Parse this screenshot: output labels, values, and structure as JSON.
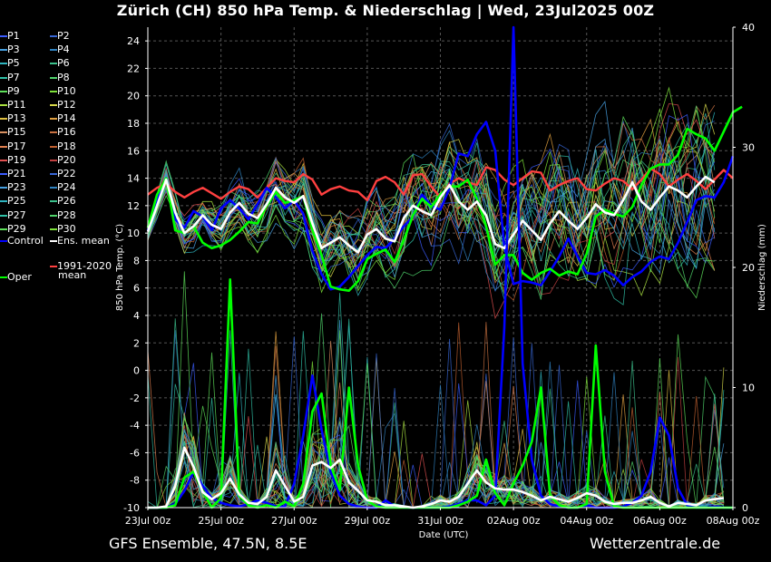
{
  "chart_data": {
    "type": "line",
    "title": "Zürich  (CH)  850 hPa Temp. & Niederschlag | Wed, 23Jul2025 00Z",
    "xlabel": "Date (UTC)",
    "ylabel": "850 hPa Temp. (°C)",
    "y2label": "Niederschlag (mm)",
    "x_ticks": [
      "23Jul 00z",
      "25Jul 00z",
      "27Jul 00z",
      "29Jul 00z",
      "31Jul 00z",
      "02Aug 00z",
      "04Aug 00z",
      "06Aug 00z",
      "08Aug 00z"
    ],
    "ylim": [
      -10,
      25
    ],
    "y_ticks": [
      -10,
      -8,
      -6,
      -4,
      -2,
      0,
      2,
      4,
      6,
      8,
      10,
      12,
      14,
      16,
      18,
      20,
      22,
      24
    ],
    "y2lim": [
      0,
      40
    ],
    "y2_ticks": [
      0,
      10,
      20,
      30,
      40
    ],
    "grid": true,
    "legend_position": "left",
    "step_hours": 6,
    "series": [
      {
        "name": "Control",
        "color": "#0000ff",
        "axis": "temp",
        "values": [
          10.2,
          12.5,
          14.0,
          11.0,
          10.4,
          11.6,
          11.2,
          10.2,
          11.8,
          12.4,
          11.8,
          11.0,
          12.1,
          13.3,
          12.6,
          11.8,
          12.4,
          11.4,
          8.7,
          7.0,
          5.9,
          6.1,
          6.8,
          7.6,
          8.4,
          9.0,
          8.9,
          9.6,
          10.5,
          11.2,
          12.8,
          12.0,
          11.7,
          13.3,
          15.8,
          15.6,
          17.2,
          18.1,
          16.0,
          9.0,
          6.3,
          6.5,
          6.4,
          6.2,
          7.2,
          8.3,
          9.6,
          8.3,
          7.1,
          7.0,
          7.3,
          6.9,
          6.2,
          6.8,
          7.2,
          7.9,
          8.3,
          8.1,
          9.3,
          10.8,
          12.4,
          12.7,
          12.6,
          13.7,
          15.6
        ]
      },
      {
        "name": "Ens. mean",
        "color": "#ffffff",
        "axis": "temp",
        "values": [
          10.1,
          12.0,
          13.9,
          11.5,
          10.0,
          10.5,
          11.3,
          10.6,
          10.3,
          11.5,
          12.2,
          11.4,
          11.1,
          12.1,
          13.3,
          12.6,
          12.2,
          12.7,
          10.7,
          8.9,
          9.3,
          9.7,
          9.1,
          8.6,
          9.9,
          10.3,
          9.6,
          9.4,
          11.1,
          12.0,
          11.6,
          11.3,
          12.6,
          13.5,
          12.3,
          11.7,
          12.3,
          11.3,
          9.2,
          8.9,
          9.9,
          10.9,
          10.2,
          9.5,
          10.7,
          11.6,
          10.9,
          10.3,
          11.1,
          12.1,
          11.5,
          11.3,
          12.4,
          13.7,
          12.3,
          11.7,
          12.6,
          13.4,
          13.1,
          12.6,
          13.4,
          14.1,
          13.7
        ]
      },
      {
        "name": "Oper",
        "color": "#00ff00",
        "axis": "temp",
        "values": [
          10.4,
          12.8,
          14.0,
          10.2,
          10.0,
          10.5,
          9.3,
          8.9,
          9.1,
          9.5,
          10.1,
          10.8,
          10.7,
          12.0,
          13.0,
          12.2,
          12.4,
          12.7,
          10.2,
          8.4,
          6.1,
          5.9,
          5.8,
          6.5,
          8.1,
          8.5,
          8.8,
          7.9,
          9.5,
          11.3,
          12.5,
          11.9,
          12.8,
          13.4,
          13.4,
          13.9,
          12.5,
          10.5,
          7.7,
          8.4,
          8.4,
          7.1,
          6.6,
          7.1,
          7.4,
          6.9,
          7.2,
          7.0,
          8.5,
          11.2,
          11.7,
          11.4,
          11.2,
          11.9,
          13.5,
          14.7,
          15.0,
          15.0,
          15.7,
          17.6,
          17.2,
          16.9,
          16.0,
          17.4,
          18.8,
          19.2
        ]
      },
      {
        "name": "1991-2020 mean",
        "color": "#ff4040",
        "axis": "temp",
        "values": [
          12.8,
          13.3,
          13.6,
          13.0,
          12.6,
          13.0,
          13.3,
          12.9,
          12.5,
          13.0,
          13.4,
          13.2,
          12.6,
          13.3,
          14.0,
          13.8,
          13.7,
          14.3,
          13.9,
          12.8,
          13.2,
          13.4,
          13.1,
          13.0,
          12.4,
          13.8,
          14.1,
          13.7,
          12.8,
          14.2,
          14.3,
          13.4,
          12.6,
          13.6,
          14.0,
          13.7,
          13.5,
          14.8,
          14.6,
          13.9,
          13.5,
          14.0,
          14.5,
          14.4,
          13.1,
          13.5,
          13.8,
          14.0,
          13.2,
          13.1,
          13.6,
          14.0,
          13.8,
          13.2,
          13.9,
          14.7,
          14.3,
          13.4,
          13.9,
          14.3,
          13.8,
          13.2,
          13.9,
          14.6,
          14.0
        ]
      },
      {
        "name": "Control",
        "color": "#0000ff",
        "axis": "precip",
        "values": [
          0,
          0,
          0,
          0.3,
          1.4,
          3.0,
          1.8,
          0.8,
          0.4,
          0.2,
          0.1,
          0.3,
          0.6,
          0.4,
          0.1,
          0.1,
          2.0,
          6.0,
          11.0,
          6.5,
          3.0,
          1.0,
          0.3,
          0.1,
          0,
          0,
          0.6,
          0.1,
          0,
          0,
          0,
          0,
          0,
          0.1,
          0.3,
          0.6,
          0.6,
          0.2,
          1.0,
          15.0,
          41.0,
          12.0,
          4.0,
          1.0,
          0.3,
          0.1,
          0,
          0,
          0.2,
          0,
          0,
          0,
          0.1,
          0.4,
          1.0,
          3.0,
          7.5,
          6.0,
          1.6,
          0.2,
          0,
          0,
          0.1,
          0,
          0
        ]
      },
      {
        "name": "Ens. mean",
        "color": "#ffffff",
        "axis": "precip",
        "values": [
          0,
          0,
          0.1,
          1.8,
          5.0,
          3.4,
          1.3,
          0.7,
          1.2,
          2.4,
          1.1,
          0.4,
          0.3,
          0.9,
          3.1,
          1.8,
          0.5,
          0.9,
          3.5,
          3.8,
          3.3,
          4.0,
          2.1,
          1.4,
          0.6,
          0.5,
          0.2,
          0.2,
          0.1,
          0,
          0.1,
          0.3,
          0.6,
          0.5,
          0.9,
          2.0,
          3.1,
          2.1,
          1.6,
          1.5,
          1.5,
          1.3,
          1.0,
          0.6,
          0.9,
          0.7,
          0.5,
          0.8,
          1.2,
          1.0,
          0.5,
          0.3,
          0.4,
          0.4,
          0.6,
          0.9,
          0.4,
          0.1,
          0.4,
          0.3,
          0.2,
          0.6,
          0.7,
          0.8
        ]
      },
      {
        "name": "Oper",
        "color": "#00ff00",
        "axis": "precip",
        "values": [
          0,
          0,
          0,
          0.2,
          2.5,
          3.0,
          1.4,
          0,
          0.8,
          19.0,
          1.0,
          0.2,
          0,
          0.2,
          0,
          0.5,
          0.1,
          2.0,
          8.0,
          9.5,
          3.5,
          1.5,
          10.0,
          3.5,
          0.6,
          0.1,
          0,
          0,
          0,
          0,
          0,
          0,
          0,
          0,
          0.2,
          0.5,
          1.0,
          4.0,
          1.2,
          0.2,
          2.0,
          3.5,
          5.5,
          10.0,
          1.0,
          0.2,
          0,
          0,
          0.3,
          13.5,
          3.0,
          0.1,
          0,
          0,
          0,
          0,
          0,
          0,
          0,
          0,
          0,
          0,
          0,
          0,
          0
        ]
      }
    ],
    "legend_entries": [
      {
        "label": "P1",
        "color": "#3b5cff"
      },
      {
        "label": "P2",
        "color": "#3766d6"
      },
      {
        "label": "P3",
        "color": "#46a0e0"
      },
      {
        "label": "P4",
        "color": "#2f82c0"
      },
      {
        "label": "P5",
        "color": "#2fb5c0"
      },
      {
        "label": "P6",
        "color": "#3cc28d"
      },
      {
        "label": "P7",
        "color": "#2fc0a6"
      },
      {
        "label": "P8",
        "color": "#4fd36b"
      },
      {
        "label": "P9",
        "color": "#5ee05a"
      },
      {
        "label": "P10",
        "color": "#7ee23a"
      },
      {
        "label": "P11",
        "color": "#a9e040"
      },
      {
        "label": "P12",
        "color": "#d6d84a"
      },
      {
        "label": "P13",
        "color": "#e0c040"
      },
      {
        "label": "P14",
        "color": "#e0a040"
      },
      {
        "label": "P15",
        "color": "#d89060"
      },
      {
        "label": "P16",
        "color": "#c87040"
      },
      {
        "label": "P17",
        "color": "#e08050"
      },
      {
        "label": "P18",
        "color": "#c06030"
      },
      {
        "label": "P19",
        "color": "#e05050"
      },
      {
        "label": "P20",
        "color": "#c04040"
      },
      {
        "label": "P21",
        "color": "#3b5cff"
      },
      {
        "label": "P22",
        "color": "#3766d6"
      },
      {
        "label": "P23",
        "color": "#46a0e0"
      },
      {
        "label": "P24",
        "color": "#2f82c0"
      },
      {
        "label": "P25",
        "color": "#2fb5c0"
      },
      {
        "label": "P26",
        "color": "#3cc28d"
      },
      {
        "label": "P27",
        "color": "#2fc0a6"
      },
      {
        "label": "P28",
        "color": "#4fd36b"
      },
      {
        "label": "P29",
        "color": "#5ee05a"
      },
      {
        "label": "P30",
        "color": "#7ee23a"
      },
      {
        "label": "Control",
        "color": "#0000ff"
      },
      {
        "label": "Ens. mean",
        "color": "#ffffff"
      },
      {
        "label": "1991-2020",
        "color": "#ff4040"
      },
      {
        "label": "mean",
        "color": ""
      },
      {
        "label": "Oper",
        "color": "#00ff00"
      }
    ],
    "ensemble_colors": [
      "#3b5cff",
      "#3766d6",
      "#46a0e0",
      "#2f82c0",
      "#2fb5c0",
      "#3cc28d",
      "#2fc0a6",
      "#4fd36b",
      "#5ee05a",
      "#7ee23a",
      "#a9e040",
      "#d6d84a",
      "#e0c040",
      "#e0a040",
      "#d89060",
      "#c87040",
      "#e08050",
      "#c06030",
      "#e05050",
      "#c04040"
    ]
  },
  "footer": {
    "left": "GFS Ensemble, 47.5N, 8.5E",
    "right": "Wetterzentrale.de"
  }
}
